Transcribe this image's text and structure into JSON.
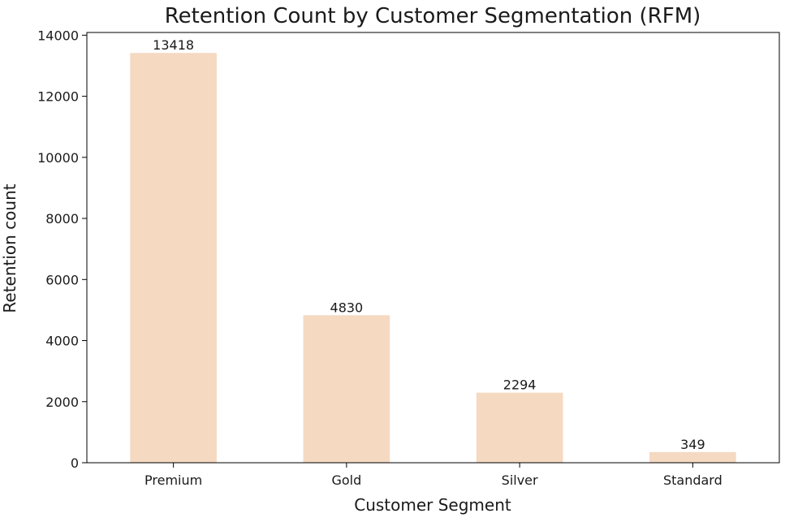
{
  "chart_data": {
    "type": "bar",
    "title": "Retention Count by Customer Segmentation (RFM)",
    "xlabel": "Customer Segment",
    "ylabel": "Retention count",
    "categories": [
      "Premium",
      "Gold",
      "Silver",
      "Standard"
    ],
    "values": [
      13418,
      4830,
      2294,
      349
    ],
    "value_labels": [
      "13418",
      "4830",
      "2294",
      "349"
    ],
    "ylim": [
      0,
      14089
    ],
    "yticks": [
      0,
      2000,
      4000,
      6000,
      8000,
      10000,
      12000,
      14000
    ],
    "ytick_labels": [
      "0",
      "2000",
      "4000",
      "6000",
      "8000",
      "10000",
      "12000",
      "14000"
    ],
    "grid": false,
    "legend": "none",
    "bar_color": "#f5d9c1"
  }
}
